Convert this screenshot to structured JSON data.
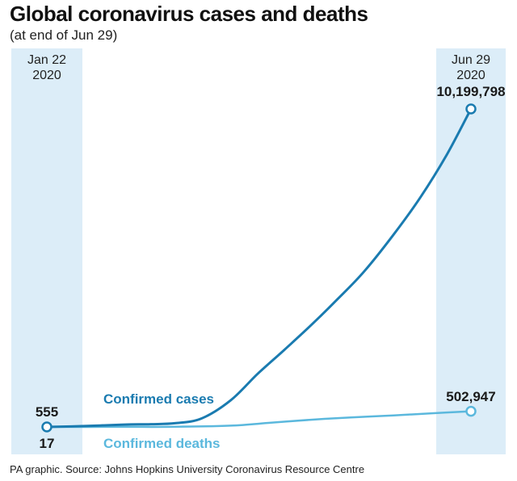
{
  "title": "Global coronavirus cases and deaths",
  "subtitle": "(at end of Jun 29)",
  "source": "PA graphic. Source: Johns Hopkins University Coronavirus Resource Centre",
  "chart_data": {
    "type": "line",
    "title": "Global coronavirus cases and deaths",
    "subtitle": "(at end of Jun 29)",
    "x_range": [
      "2020-01-22",
      "2020-06-29"
    ],
    "start_label": {
      "line1": "Jan 22",
      "line2": "2020"
    },
    "end_label": {
      "line1": "Jun 29",
      "line2": "2020"
    },
    "y_range": [
      0,
      10199798
    ],
    "grid": false,
    "series": [
      {
        "name": "Confirmed cases",
        "color": "#1a7bb0",
        "start_value": 555,
        "start_label": "555",
        "end_value": 10199798,
        "end_label": "10,199,798",
        "points": [
          [
            "2020-01-22",
            555
          ],
          [
            "2020-02-05",
            28000
          ],
          [
            "2020-02-20",
            76000
          ],
          [
            "2020-03-01",
            88000
          ],
          [
            "2020-03-10",
            119000
          ],
          [
            "2020-03-20",
            272000
          ],
          [
            "2020-03-31",
            860000
          ],
          [
            "2020-04-10",
            1700000
          ],
          [
            "2020-04-20",
            2470000
          ],
          [
            "2020-04-30",
            3260000
          ],
          [
            "2020-05-10",
            4100000
          ],
          [
            "2020-05-20",
            4990000
          ],
          [
            "2020-05-31",
            6170000
          ],
          [
            "2020-06-10",
            7360000
          ],
          [
            "2020-06-20",
            8740000
          ],
          [
            "2020-06-29",
            10199798
          ]
        ]
      },
      {
        "name": "Confirmed deaths",
        "color": "#5bb8dd",
        "start_value": 17,
        "start_label": "17",
        "end_value": 502947,
        "end_label": "502,947",
        "points": [
          [
            "2020-01-22",
            17
          ],
          [
            "2020-02-20",
            2250
          ],
          [
            "2020-03-10",
            4300
          ],
          [
            "2020-03-31",
            42000
          ],
          [
            "2020-04-15",
            135000
          ],
          [
            "2020-04-30",
            230000
          ],
          [
            "2020-05-15",
            305000
          ],
          [
            "2020-05-31",
            370000
          ],
          [
            "2020-06-15",
            440000
          ],
          [
            "2020-06-29",
            502947
          ]
        ]
      }
    ]
  }
}
